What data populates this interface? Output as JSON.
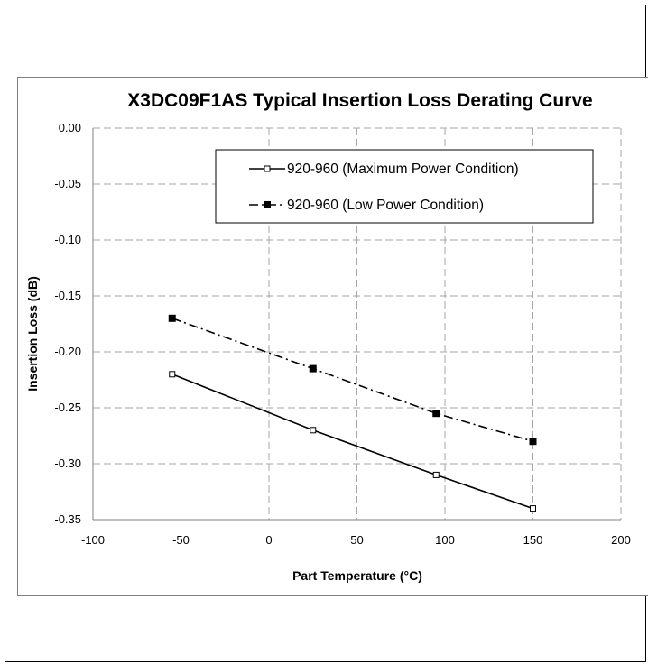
{
  "chart_data": {
    "type": "line",
    "title": "X3DC09F1AS Typical Insertion Loss Derating Curve",
    "xlabel": "Part Temperature (°C)",
    "ylabel": "Insertion Loss (dB)",
    "xlim": [
      -100,
      200
    ],
    "ylim": [
      -0.35,
      0.0
    ],
    "x_ticks": [
      "-100",
      "-50",
      "0",
      "50",
      "100",
      "150",
      "200"
    ],
    "y_ticks": [
      "0.00",
      "-0.05",
      "-0.10",
      "-0.15",
      "-0.20",
      "-0.25",
      "-0.30",
      "-0.35"
    ],
    "grid": true,
    "legend_position": "top-right",
    "series": [
      {
        "name": "920-960 (Maximum Power Condition)",
        "style": "solid",
        "marker": "hollow-square",
        "color": "#000000",
        "x": [
          -55,
          25,
          95,
          150
        ],
        "y": [
          -0.22,
          -0.27,
          -0.31,
          -0.34
        ]
      },
      {
        "name": "920-960 (Low Power Condition)",
        "style": "dash-dot",
        "marker": "filled-square",
        "color": "#000000",
        "x": [
          -55,
          25,
          95,
          150
        ],
        "y": [
          -0.17,
          -0.215,
          -0.255,
          -0.28
        ]
      }
    ]
  }
}
